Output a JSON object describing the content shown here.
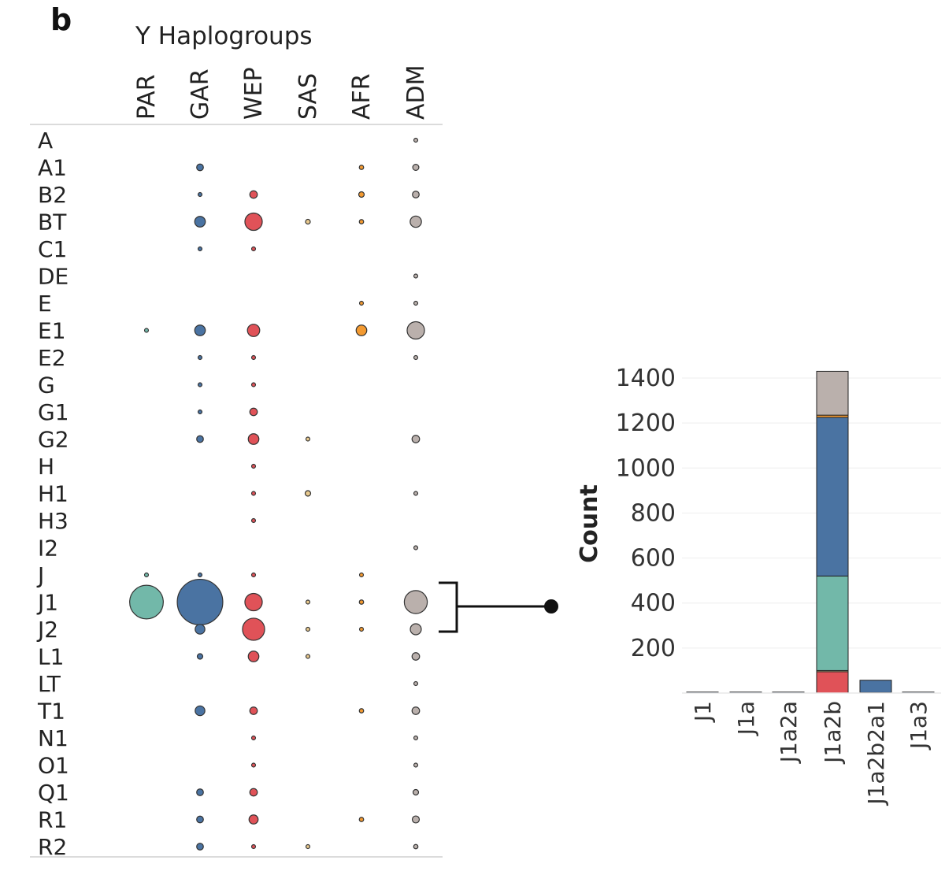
{
  "panel_label": "b",
  "chart_data": [
    {
      "type": "scatter",
      "subtype": "bubble-matrix",
      "title": "Y Haplogroups",
      "columns": [
        "PAR",
        "GAR",
        "WEP",
        "SAS",
        "AFR",
        "ADM"
      ],
      "column_colors": {
        "PAR": "#72b8a9",
        "GAR": "#4a73a2",
        "WEP": "#e05258",
        "SAS": "#e8c98e",
        "AFR": "#f39a31",
        "ADM": "#bab0ac"
      },
      "rows": [
        "A",
        "A1",
        "B2",
        "BT",
        "C1",
        "DE",
        "E",
        "E1",
        "E2",
        "G",
        "G1",
        "G2",
        "H",
        "H1",
        "H3",
        "I2",
        "J",
        "J1",
        "J2",
        "L1",
        "LT",
        "T1",
        "N1",
        "O1",
        "Q1",
        "R1",
        "R2"
      ],
      "size_scale_note": "relative bubble size (0-10), values estimated from bubble areas",
      "values": {
        "A": [
          0,
          0,
          0,
          0,
          0,
          0.4
        ],
        "A1": [
          0,
          1.2,
          0,
          0,
          0.5,
          1
        ],
        "B2": [
          0,
          0.4,
          1.5,
          0,
          0.8,
          1.2
        ],
        "BT": [
          0,
          3,
          8,
          0.6,
          0.5,
          3.4
        ],
        "C1": [
          0,
          0.4,
          0.4,
          0,
          0,
          0
        ],
        "DE": [
          0,
          0,
          0,
          0,
          0,
          0.4
        ],
        "E": [
          0,
          0,
          0,
          0,
          0.4,
          0.4
        ],
        "E1": [
          0.4,
          3,
          4,
          0,
          3,
          8
        ],
        "E2": [
          0,
          0.4,
          0.4,
          0,
          0,
          0.4
        ],
        "G": [
          0,
          0.4,
          0.4,
          0,
          0,
          0
        ],
        "G1": [
          0,
          0.4,
          1.5,
          0,
          0,
          0
        ],
        "G2": [
          0,
          1.2,
          3,
          0.4,
          0,
          1.5
        ],
        "H": [
          0,
          0,
          0.4,
          0,
          0,
          0
        ],
        "H1": [
          0,
          0,
          0.4,
          0.8,
          0,
          0.4
        ],
        "H3": [
          0,
          0,
          0.4,
          0,
          0,
          0
        ],
        "I2": [
          0,
          0,
          0,
          0,
          0,
          0.4
        ],
        "J": [
          0.4,
          0.4,
          0.4,
          0,
          0.4,
          0
        ],
        "J1": [
          30,
          55,
          8,
          0.4,
          0.5,
          14
        ],
        "J2": [
          0,
          2.5,
          13,
          0.4,
          0.4,
          3.2
        ],
        "L1": [
          0,
          0.8,
          3,
          0.4,
          0,
          1.5
        ],
        "LT": [
          0,
          0,
          0,
          0,
          0,
          0.4
        ],
        "T1": [
          0,
          2.5,
          1.5,
          0,
          0.5,
          1.5
        ],
        "N1": [
          0,
          0,
          0.4,
          0,
          0,
          0.4
        ],
        "O1": [
          0,
          0,
          0.4,
          0,
          0,
          0.4
        ],
        "Q1": [
          0,
          1.2,
          1.5,
          0,
          0,
          0.8
        ],
        "R1": [
          0,
          1.2,
          2.2,
          0,
          0.5,
          1.3
        ],
        "R2": [
          0,
          1.2,
          0.4,
          0.4,
          0,
          0.5
        ]
      }
    },
    {
      "type": "bar",
      "stacked": true,
      "title": "",
      "xlabel": "",
      "ylabel": "Count",
      "categories": [
        "J1",
        "J1a",
        "J1a2a",
        "J1a2b",
        "J1a2b2a1",
        "J1a3"
      ],
      "yticks": [
        200,
        400,
        600,
        800,
        1000,
        1200,
        1400
      ],
      "ylim": [
        0,
        1450
      ],
      "series": [
        {
          "name": "WEP",
          "color": "#e05258",
          "values": [
            0,
            0,
            0,
            95,
            0,
            0
          ]
        },
        {
          "name": "SAS",
          "color": "#e8c98e",
          "values": [
            0,
            0,
            0,
            5,
            0,
            0
          ]
        },
        {
          "name": "PAR",
          "color": "#72b8a9",
          "values": [
            0,
            0,
            0,
            420,
            2,
            0
          ]
        },
        {
          "name": "GAR",
          "color": "#4a73a2",
          "values": [
            1,
            2,
            2,
            705,
            55,
            1
          ]
        },
        {
          "name": "AFR",
          "color": "#f39a31",
          "values": [
            0,
            0,
            0,
            10,
            0,
            0
          ]
        },
        {
          "name": "ADM",
          "color": "#bab0ac",
          "values": [
            0,
            0,
            0,
            195,
            0,
            0
          ]
        }
      ]
    }
  ]
}
